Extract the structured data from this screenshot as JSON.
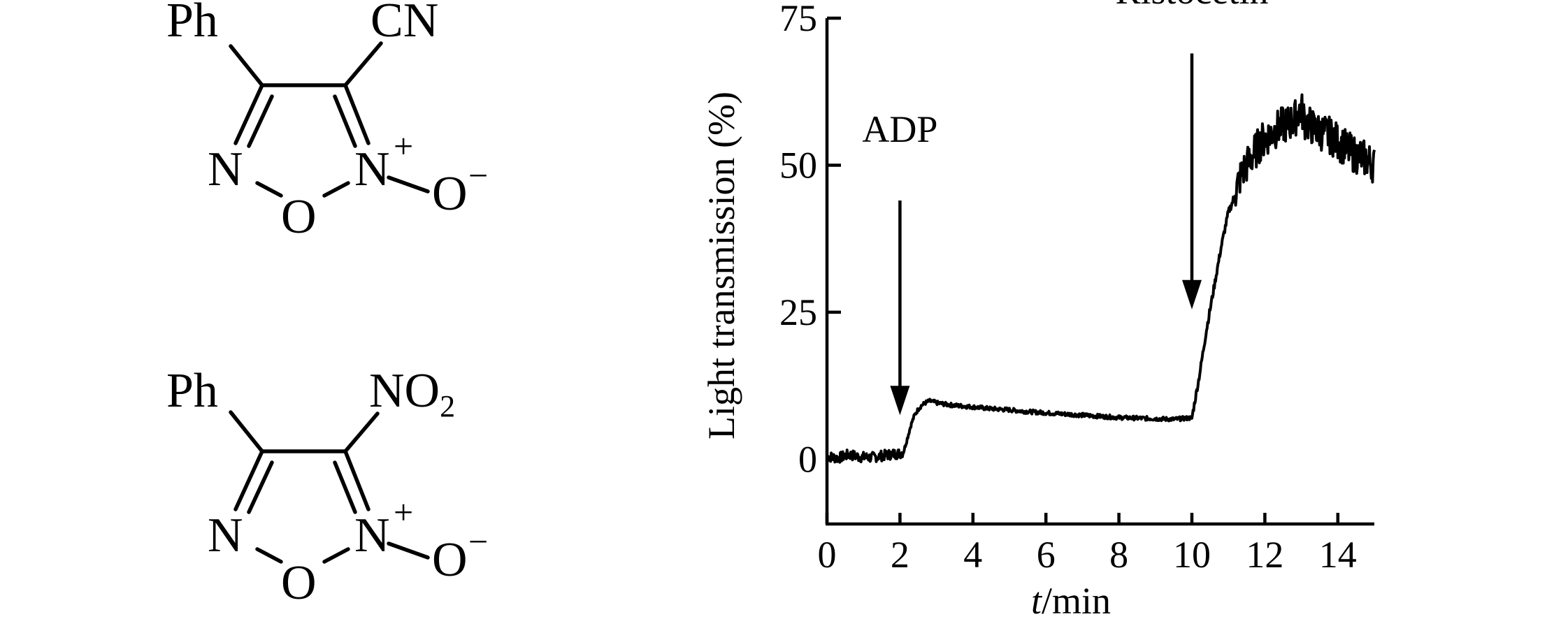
{
  "structures": [
    {
      "substituent_left": "Ph",
      "substituent_right": "CN",
      "ring_n_left": "N",
      "ring_n_right": "N",
      "ring_charge": "+",
      "ring_o": "O",
      "oxide_o": "O",
      "oxide_charge": "−"
    },
    {
      "substituent_left": "Ph",
      "substituent_right_main": "NO",
      "substituent_right_sub": "2",
      "ring_n_left": "N",
      "ring_n_right": "N",
      "ring_charge": "+",
      "ring_o": "O",
      "oxide_o": "O",
      "oxide_charge": "−"
    }
  ],
  "chart_data": {
    "type": "line",
    "xlabel_italic": "t",
    "xlabel_rest": "/min",
    "ylabel": "Light transmission (%)",
    "xlim": [
      0,
      15
    ],
    "ylim": [
      -11,
      75
    ],
    "xticks": [
      0,
      2,
      4,
      6,
      8,
      10,
      12,
      14
    ],
    "yticks": [
      0,
      25,
      50,
      75
    ],
    "annotations": [
      {
        "text": "ADP",
        "x": 2
      },
      {
        "text": "Ristocetin",
        "x": 10
      }
    ],
    "series": [
      {
        "x": [
          0,
          0.3,
          0.6,
          0.9,
          1.2,
          1.5,
          1.8,
          2.0,
          2.1,
          2.2,
          2.3,
          2.4,
          2.5,
          2.6,
          2.7,
          2.8,
          2.9,
          3.0,
          3.3,
          3.6,
          4.0,
          4.5,
          5.0,
          5.5,
          6.0,
          6.5,
          7.0,
          7.5,
          8.0,
          8.5,
          9.0,
          9.5,
          9.9,
          10.0,
          10.2,
          10.4,
          10.6,
          10.8,
          10.9,
          11.0,
          11.1,
          11.2,
          11.3,
          11.4,
          11.5,
          11.6,
          11.7,
          11.8,
          11.9,
          12.0,
          12.2,
          12.4,
          12.6,
          12.8,
          12.9,
          13.0,
          13.1,
          13.2,
          13.4,
          13.6,
          13.8,
          14.0,
          14.2,
          14.4,
          14.6,
          14.8,
          14.9,
          15.0
        ],
        "y": [
          0.5,
          0.2,
          0.8,
          0.4,
          0.3,
          0.6,
          0.9,
          1.0,
          1.3,
          3.5,
          5.8,
          7.5,
          8.5,
          9.2,
          9.6,
          9.9,
          9.8,
          9.6,
          9.3,
          9.1,
          8.9,
          8.6,
          8.4,
          8.1,
          7.9,
          7.7,
          7.5,
          7.3,
          7.1,
          7.0,
          6.9,
          6.8,
          7.0,
          7.0,
          14,
          22,
          29,
          36,
          39,
          42,
          43.5,
          45.5,
          47.5,
          49,
          50,
          51,
          52,
          53,
          54,
          54.5,
          55.5,
          56.5,
          57,
          57.5,
          59,
          59.5,
          57.5,
          57,
          56,
          55.5,
          55,
          54,
          53,
          52,
          51.5,
          51,
          50.5,
          50
        ]
      }
    ]
  }
}
